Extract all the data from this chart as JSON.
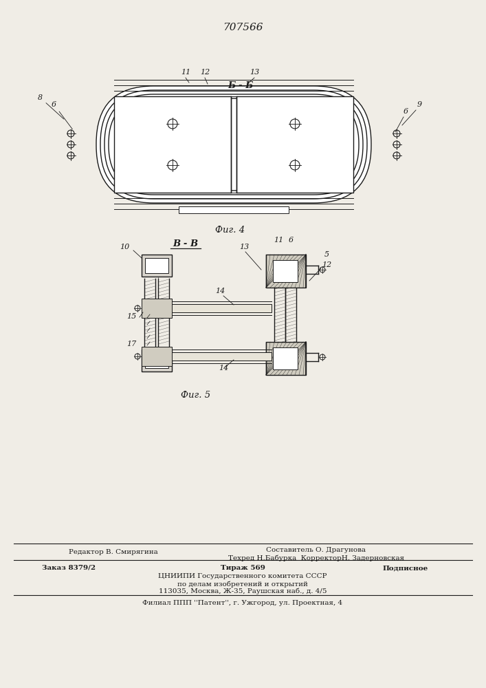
{
  "title_number": "707566",
  "bg_color": "#f0ede6",
  "line_color": "#1a1a1a",
  "fig4_section_label": "Б - Б",
  "fig4_caption": "Фиг. 4",
  "fig5_section_label": "В - В",
  "fig5_caption": "Фиг. 5",
  "footer_line1_left": "Редактор В. Смирягина",
  "footer_line1_right": "Составитель О. Драгунова",
  "footer_line2_right": "Техред Н.Бабурка  КорректорН. Задерновская",
  "footer_line3_left": "Заказ 8379/2",
  "footer_line3_center": "Тираж 569",
  "footer_line3_right": "Подписное",
  "footer_line4": "ЦНИИПИ Государственного комитета СССР",
  "footer_line5": "по делам изобретений и открытий",
  "footer_line6": "113035, Москва, Ж-35, Раушская наб., д. 4/5",
  "footer_line7": "Филиал ППП ''Патент'', г. Ужгород, ул. Проектная, 4"
}
